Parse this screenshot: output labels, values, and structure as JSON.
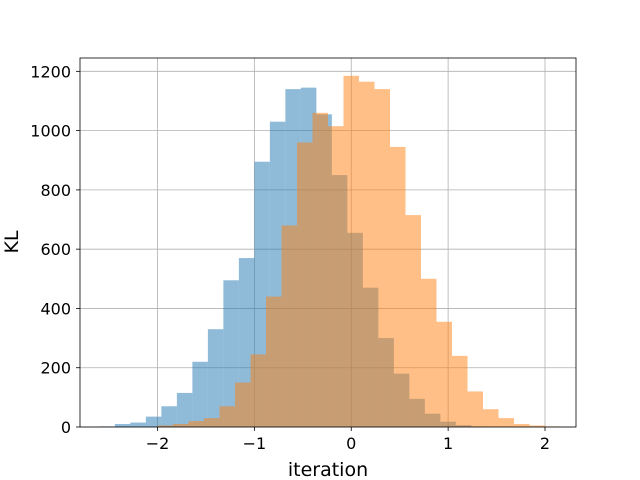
{
  "chart_data": {
    "type": "bar",
    "title": "",
    "xlabel": "iteration",
    "ylabel": "KL",
    "xlim": [
      -2.8,
      2.32
    ],
    "ylim": [
      0,
      1245
    ],
    "grid": true,
    "legend": "none",
    "x_ticks": [
      -2,
      -1,
      0,
      1,
      2
    ],
    "x_tick_labels": [
      "−2",
      "−1",
      "0",
      "1",
      "2"
    ],
    "y_ticks": [
      0,
      200,
      400,
      600,
      800,
      1000,
      1200
    ],
    "y_tick_labels": [
      "0",
      "200",
      "400",
      "600",
      "800",
      "1000",
      "1200"
    ],
    "series": [
      {
        "color": "#1f77b4",
        "opacity": 0.5,
        "bin_edges": [
          -2.6,
          -2.44,
          -2.28,
          -2.12,
          -1.96,
          -1.8,
          -1.64,
          -1.48,
          -1.32,
          -1.16,
          -1.0,
          -0.84,
          -0.68,
          -0.52,
          -0.36,
          -0.2,
          -0.04,
          0.12,
          0.28,
          0.44,
          0.6,
          0.76,
          0.92,
          1.08,
          1.24,
          1.4
        ],
        "values": [
          2,
          10,
          15,
          35,
          70,
          115,
          220,
          330,
          495,
          570,
          895,
          1030,
          1140,
          1145,
          1055,
          850,
          655,
          470,
          300,
          180,
          95,
          45,
          18,
          6,
          2
        ]
      },
      {
        "color": "#ff7f0e",
        "opacity": 0.5,
        "bin_edges": [
          -2.0,
          -1.84,
          -1.68,
          -1.52,
          -1.36,
          -1.2,
          -1.04,
          -0.88,
          -0.72,
          -0.56,
          -0.4,
          -0.24,
          -0.08,
          0.08,
          0.24,
          0.4,
          0.56,
          0.72,
          0.88,
          1.04,
          1.2,
          1.36,
          1.52,
          1.68,
          1.84,
          2.0,
          2.16
        ],
        "values": [
          5,
          10,
          20,
          30,
          70,
          150,
          245,
          440,
          680,
          960,
          1060,
          1015,
          1185,
          1165,
          1140,
          945,
          715,
          500,
          355,
          240,
          120,
          60,
          30,
          10,
          5,
          2
        ]
      }
    ]
  }
}
